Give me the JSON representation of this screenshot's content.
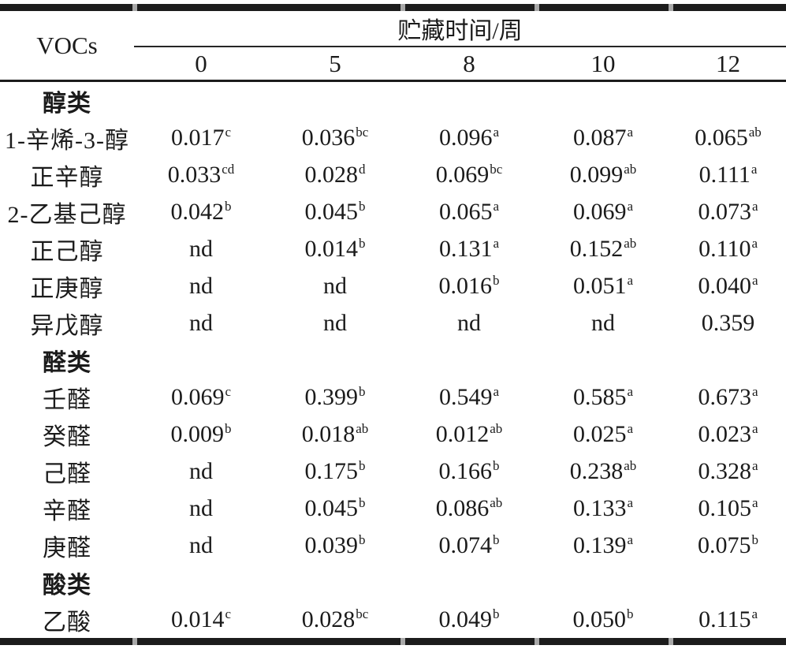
{
  "colors": {
    "background": "#ffffff",
    "text": "#1b1b1b",
    "rule": "#1c1c1c",
    "rule_notch": "#a8a8a8"
  },
  "table": {
    "vocs_label": "VOCs",
    "span_label": "贮藏时间/周",
    "time_points": [
      "0",
      "5",
      "8",
      "10",
      "12"
    ],
    "not_detected_text": "nd",
    "rows": [
      {
        "type": "group",
        "label": "醇类"
      },
      {
        "type": "data",
        "label": "1-辛烯-3-醇",
        "values": [
          {
            "v": "0.017",
            "sup": "c"
          },
          {
            "v": "0.036",
            "sup": "bc"
          },
          {
            "v": "0.096",
            "sup": "a"
          },
          {
            "v": "0.087",
            "sup": "a"
          },
          {
            "v": "0.065",
            "sup": "ab"
          }
        ]
      },
      {
        "type": "data",
        "label": "正辛醇",
        "values": [
          {
            "v": "0.033",
            "sup": "cd"
          },
          {
            "v": "0.028",
            "sup": "d"
          },
          {
            "v": "0.069",
            "sup": "bc"
          },
          {
            "v": "0.099",
            "sup": "ab"
          },
          {
            "v": "0.111",
            "sup": "a"
          }
        ]
      },
      {
        "type": "data",
        "label": "2-乙基己醇",
        "values": [
          {
            "v": "0.042",
            "sup": "b"
          },
          {
            "v": "0.045",
            "sup": "b"
          },
          {
            "v": "0.065",
            "sup": "a"
          },
          {
            "v": "0.069",
            "sup": "a"
          },
          {
            "v": "0.073",
            "sup": "a"
          }
        ]
      },
      {
        "type": "data",
        "label": "正己醇",
        "values": [
          {
            "v": "nd"
          },
          {
            "v": "0.014",
            "sup": "b"
          },
          {
            "v": "0.131",
            "sup": "a"
          },
          {
            "v": "0.152",
            "sup": "ab"
          },
          {
            "v": "0.110",
            "sup": "a"
          }
        ]
      },
      {
        "type": "data",
        "label": "正庚醇",
        "values": [
          {
            "v": "nd"
          },
          {
            "v": "nd"
          },
          {
            "v": "0.016",
            "sup": "b"
          },
          {
            "v": "0.051",
            "sup": "a"
          },
          {
            "v": "0.040",
            "sup": "a"
          }
        ]
      },
      {
        "type": "data",
        "label": "异戊醇",
        "values": [
          {
            "v": "nd"
          },
          {
            "v": "nd"
          },
          {
            "v": "nd"
          },
          {
            "v": "nd"
          },
          {
            "v": "0.359"
          }
        ]
      },
      {
        "type": "group",
        "label": "醛类"
      },
      {
        "type": "data",
        "label": "壬醛",
        "values": [
          {
            "v": "0.069",
            "sup": "c"
          },
          {
            "v": "0.399",
            "sup": "b"
          },
          {
            "v": "0.549",
            "sup": "a"
          },
          {
            "v": "0.585",
            "sup": "a"
          },
          {
            "v": "0.673",
            "sup": "a"
          }
        ]
      },
      {
        "type": "data",
        "label": "癸醛",
        "values": [
          {
            "v": "0.009",
            "sup": "b"
          },
          {
            "v": "0.018",
            "sup": "ab"
          },
          {
            "v": "0.012",
            "sup": "ab"
          },
          {
            "v": "0.025",
            "sup": "a"
          },
          {
            "v": "0.023",
            "sup": "a"
          }
        ]
      },
      {
        "type": "data",
        "label": "己醛",
        "values": [
          {
            "v": "nd"
          },
          {
            "v": "0.175",
            "sup": "b"
          },
          {
            "v": "0.166",
            "sup": "b"
          },
          {
            "v": "0.238",
            "sup": "ab"
          },
          {
            "v": "0.328",
            "sup": "a"
          }
        ]
      },
      {
        "type": "data",
        "label": "辛醛",
        "values": [
          {
            "v": "nd"
          },
          {
            "v": "0.045",
            "sup": "b"
          },
          {
            "v": "0.086",
            "sup": "ab"
          },
          {
            "v": "0.133",
            "sup": "a"
          },
          {
            "v": "0.105",
            "sup": "a"
          }
        ]
      },
      {
        "type": "data",
        "label": "庚醛",
        "values": [
          {
            "v": "nd"
          },
          {
            "v": "0.039",
            "sup": "b"
          },
          {
            "v": "0.074",
            "sup": "b"
          },
          {
            "v": "0.139",
            "sup": "a"
          },
          {
            "v": "0.075",
            "sup": "b"
          }
        ]
      },
      {
        "type": "group",
        "label": "酸类"
      },
      {
        "type": "data",
        "label": "乙酸",
        "values": [
          {
            "v": "0.014",
            "sup": "c"
          },
          {
            "v": "0.028",
            "sup": "bc"
          },
          {
            "v": "0.049",
            "sup": "b"
          },
          {
            "v": "0.050",
            "sup": "b"
          },
          {
            "v": "0.115",
            "sup": "a"
          }
        ]
      }
    ]
  }
}
